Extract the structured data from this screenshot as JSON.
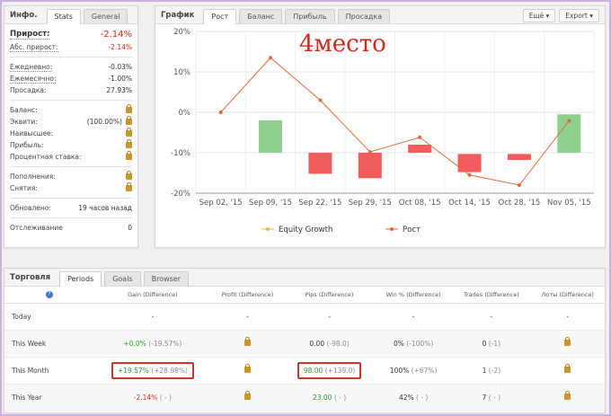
{
  "info": {
    "title": "Инфо.",
    "tabs": [
      "Stats",
      "General"
    ],
    "gain_label": "Прирост:",
    "gain_value": "-2.14%",
    "abs_gain_label": "Абс. прирост:",
    "abs_gain_value": "-2.14%",
    "daily_label": "Ежедневно:",
    "daily_value": "-0.03%",
    "monthly_label": "Ежемесячно:",
    "monthly_value": "-1.00%",
    "drawdown_label": "Просадка:",
    "drawdown_value": "27.93%",
    "balance_label": "Баланс:",
    "equity_label": "Эквити:",
    "equity_value": "(100.00%)",
    "highest_label": "Наивысшее:",
    "profit_label": "Прибыль:",
    "interest_label": "Процентная ставка:",
    "deposits_label": "Пополнения:",
    "withdrawals_label": "Снятия:",
    "updated_label": "Обновлено:",
    "updated_value": "19 часов назад",
    "tracking_label": "Отслеживание",
    "tracking_value": "0"
  },
  "chart_panel": {
    "title": "График",
    "tabs": [
      "Рост",
      "Баланс",
      "Прибыль",
      "Просадка"
    ],
    "more_button": "Ещё",
    "export_button": "Export",
    "overlay_text": "4место",
    "legend": [
      "Equity Growth",
      "Рост"
    ]
  },
  "chart_data": {
    "type": "line",
    "categories": [
      "Sep 02, '15",
      "Sep 09, '15",
      "Sep 22, '15",
      "Sep 29, '15",
      "Oct 08, '15",
      "Oct 14, '15",
      "Oct 28, '15",
      "Nov 05, '15"
    ],
    "yticks": [
      "20%",
      "10%",
      "0%",
      "-10%",
      "-20%"
    ],
    "ylim": [
      -20,
      20
    ],
    "series": [
      {
        "name": "Рост",
        "values": [
          0,
          13.5,
          3,
          -9.8,
          -6.2,
          -15.5,
          -18,
          -2.1
        ]
      }
    ],
    "bars": [
      {
        "from": 0,
        "to": 0
      },
      {
        "from": -10,
        "to": -2
      },
      {
        "from": -10,
        "to": -15.2
      },
      {
        "from": -10,
        "to": -16.3
      },
      {
        "from": -8,
        "to": -10
      },
      {
        "from": -10.3,
        "to": -14.8
      },
      {
        "from": -10.3,
        "to": -11.8
      },
      {
        "from": -10,
        "to": -0.5
      }
    ],
    "colors": {
      "up": "#8fd08f",
      "down": "#f25c5c",
      "line": "#e8673a",
      "equity": "#e8b84a"
    }
  },
  "trading": {
    "title": "Торговля",
    "tabs": [
      "Periods",
      "Goals",
      "Browser"
    ],
    "columns": [
      "Gain (Difference)",
      "Profit (Difference)",
      "Pips (Difference)",
      "Win % (Difference)",
      "Trades (Difference)",
      "Лоты (Difference)"
    ],
    "rows": [
      {
        "name": "Today",
        "gain": "-",
        "gain_diff": "",
        "profit": "-",
        "pips": "-",
        "pips_diff": "",
        "win": "-",
        "win_diff": "",
        "trades": "-",
        "trades_diff": "",
        "lots": "-"
      },
      {
        "name": "This Week",
        "gain": "+0.0%",
        "gain_diff": "(-19.57%)",
        "profit": "lock",
        "pips": "0.00",
        "pips_diff": "(-98.0)",
        "win": "0%",
        "win_diff": "(-100%)",
        "trades": "0",
        "trades_diff": "(-1)",
        "lots": "lock"
      },
      {
        "name": "This Month",
        "gain": "+19.57%",
        "gain_diff": "(+28.98%)",
        "profit": "lock",
        "pips": "98.00",
        "pips_diff": "(+139.0)",
        "win": "100%",
        "win_diff": "(+67%)",
        "trades": "1",
        "trades_diff": "(-2)",
        "lots": "lock"
      },
      {
        "name": "This Year",
        "gain": "-2.14%",
        "gain_diff": "( - )",
        "profit": "lock",
        "pips": "23.00",
        "pips_diff": "( - )",
        "win": "42%",
        "win_diff": "( - )",
        "trades": "7",
        "trades_diff": "( - )",
        "lots": "lock"
      }
    ]
  }
}
